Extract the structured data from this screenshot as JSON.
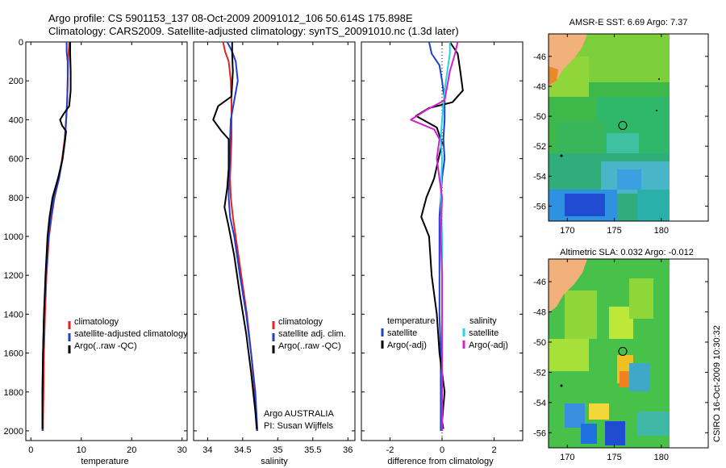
{
  "header": {
    "line1": "Argo profile: CS 5901153_137 08-Oct-2009 20091012_106 50.614S 175.898E",
    "line2": "Climatology: CARS2009. Satellite-adjusted climatology: synTS_20091010.nc (1.3d later)"
  },
  "credit": "CSIRO 16-Oct-2009 10:30:32",
  "chart_data": [
    {
      "type": "line",
      "xlabel": "temperature",
      "xlim": [
        -1,
        31
      ],
      "xticks": [
        0,
        10,
        20,
        30
      ],
      "ylim": [
        0,
        2050
      ],
      "yticks": [
        0,
        200,
        400,
        600,
        800,
        1000,
        1200,
        1400,
        1600,
        1800,
        2000
      ],
      "y_reversed": true,
      "legend": {
        "position": "lower-left",
        "entries": [
          {
            "label": "climatology",
            "color": "#e8211e"
          },
          {
            "label": "satellite-adjusted climatology",
            "color": "#1f3fcf"
          },
          {
            "label": "Argo(..raw -QC)",
            "color": "#000000"
          }
        ]
      },
      "series": [
        {
          "name": "climatology",
          "color": "#e8211e",
          "x": [
            7.6,
            7.5,
            7.4,
            7.3,
            7.2,
            7.0,
            6.7,
            6.2,
            5.6,
            4.7,
            4.1,
            3.6,
            3.1,
            2.8,
            2.6,
            2.5,
            2.4,
            2.4
          ],
          "y": [
            0,
            50,
            100,
            200,
            300,
            400,
            500,
            600,
            700,
            800,
            900,
            1000,
            1200,
            1400,
            1600,
            1800,
            1950,
            2000
          ]
        },
        {
          "name": "satellite-adjusted climatology",
          "color": "#1f3fcf",
          "x": [
            7.1,
            7.1,
            7.3,
            7.3,
            7.2,
            7.0,
            6.8,
            6.3,
            5.6,
            4.6,
            4.0,
            3.5,
            3.0,
            2.6,
            2.4,
            2.3,
            2.3,
            2.3
          ],
          "y": [
            0,
            50,
            100,
            200,
            300,
            400,
            500,
            600,
            700,
            800,
            900,
            1000,
            1200,
            1400,
            1600,
            1800,
            1950,
            2000
          ]
        },
        {
          "name": "Argo(..raw -QC)",
          "color": "#000000",
          "x": [
            7.8,
            7.8,
            7.9,
            7.9,
            7.6,
            6.5,
            5.8,
            6.2,
            7.0,
            6.3,
            5.4,
            4.3,
            3.7,
            3.3,
            2.9,
            2.6,
            2.4,
            2.3,
            2.3
          ],
          "y": [
            0,
            60,
            150,
            250,
            330,
            370,
            400,
            430,
            460,
            600,
            700,
            800,
            900,
            1000,
            1200,
            1400,
            1600,
            1800,
            1990
          ]
        }
      ]
    },
    {
      "type": "line",
      "xlabel": "salinity",
      "xlim": [
        33.8,
        36.1
      ],
      "xticks": [
        34,
        34.5,
        35,
        35.5,
        36
      ],
      "ylim": [
        0,
        2050
      ],
      "yticks": [
        0,
        200,
        400,
        600,
        800,
        1000,
        1200,
        1400,
        1600,
        1800,
        2000
      ],
      "y_reversed": true,
      "legend": {
        "position": "lower-right",
        "entries": [
          {
            "label": "climatology",
            "color": "#e8211e"
          },
          {
            "label": "satellite adj. clim.",
            "color": "#1f3fcf"
          },
          {
            "label": "Argo(..raw -QC)",
            "color": "#000000"
          }
        ]
      },
      "annotation": {
        "line1": "Argo AUSTRALIA",
        "line2": "PI: Susan Wijffels"
      },
      "series": [
        {
          "name": "climatology",
          "color": "#e8211e",
          "x": [
            34.22,
            34.25,
            34.3,
            34.33,
            34.34,
            34.34,
            34.34,
            34.33,
            34.32,
            34.33,
            34.36,
            34.4,
            34.48,
            34.56,
            34.62,
            34.67,
            34.7
          ],
          "y": [
            0,
            50,
            100,
            200,
            300,
            400,
            500,
            600,
            700,
            800,
            900,
            1000,
            1200,
            1400,
            1600,
            1800,
            2000
          ]
        },
        {
          "name": "satellite adj. clim.",
          "color": "#1f3fcf",
          "x": [
            34.28,
            34.35,
            34.4,
            34.43,
            34.38,
            34.33,
            34.32,
            34.32,
            34.3,
            34.3,
            34.32,
            34.38,
            34.46,
            34.55,
            34.62,
            34.68,
            34.71
          ],
          "y": [
            0,
            50,
            100,
            200,
            300,
            400,
            500,
            600,
            700,
            800,
            900,
            1000,
            1200,
            1400,
            1600,
            1800,
            2000
          ]
        },
        {
          "name": "Argo(..raw -QC)",
          "color": "#000000",
          "x": [
            34.35,
            34.35,
            34.36,
            34.34,
            34.15,
            34.08,
            34.2,
            34.3,
            34.3,
            34.28,
            34.24,
            34.3,
            34.38,
            34.46,
            34.55,
            34.62,
            34.68,
            34.7
          ],
          "y": [
            0,
            60,
            150,
            280,
            330,
            400,
            460,
            500,
            650,
            750,
            850,
            950,
            1100,
            1300,
            1500,
            1700,
            1900,
            1990
          ]
        }
      ]
    },
    {
      "type": "line",
      "xlabel": "difference from climatology",
      "xlim": [
        -3.1,
        3.1
      ],
      "xticks": [
        -2,
        0,
        2
      ],
      "ylim": [
        0,
        2050
      ],
      "yticks": [
        0,
        200,
        400,
        600,
        800,
        1000,
        1200,
        1400,
        1600,
        1800,
        2000
      ],
      "y_reversed": true,
      "legend": {
        "position": "lower",
        "groups": [
          {
            "heading": "temperature",
            "entries": [
              {
                "label": "satellite",
                "color": "#1f3fcf"
              },
              {
                "label": "Argo(-adj)",
                "color": "#000000"
              }
            ]
          },
          {
            "heading": "salinity",
            "entries": [
              {
                "label": "satellite",
                "color": "#22d4ea"
              },
              {
                "label": "Argo(-adj)",
                "color": "#d020d0"
              }
            ]
          }
        ]
      },
      "series": [
        {
          "name": "temperature satellite",
          "color": "#1f3fcf",
          "x": [
            -0.5,
            -0.4,
            -0.1,
            0.0,
            0.1,
            0.1,
            0.05,
            0.1,
            0.0,
            -0.05,
            -0.1,
            -0.1,
            -0.1,
            -0.1,
            -0.05,
            -0.05,
            -0.05
          ],
          "y": [
            0,
            60,
            120,
            200,
            300,
            400,
            500,
            600,
            700,
            800,
            900,
            1000,
            1200,
            1400,
            1600,
            1800,
            2000
          ]
        },
        {
          "name": "temperature Argo(-adj)",
          "color": "#000000",
          "x": [
            0.3,
            0.6,
            0.7,
            0.8,
            0.4,
            -0.5,
            -1.0,
            -0.2,
            0.0,
            -0.3,
            -0.6,
            -0.8,
            -0.5,
            -0.4,
            -0.2,
            -0.1,
            0.1,
            0.0,
            0.05
          ],
          "y": [
            0,
            60,
            150,
            250,
            310,
            340,
            380,
            440,
            520,
            700,
            800,
            900,
            1000,
            1200,
            1400,
            1600,
            1800,
            1950,
            1990
          ]
        },
        {
          "name": "salinity satellite",
          "color": "#22d4ea",
          "x": [
            0.3,
            0.3,
            0.2,
            0.1,
            0.0,
            -0.05,
            0.0,
            -0.05,
            0.0,
            0.0,
            0.0,
            0.0,
            0.0
          ],
          "y": [
            0,
            60,
            150,
            250,
            400,
            500,
            600,
            800,
            1000,
            1200,
            1400,
            1600,
            1800
          ]
        },
        {
          "name": "salinity Argo(-adj)",
          "color": "#d020d0",
          "x": [
            0.6,
            0.5,
            0.3,
            0.1,
            -0.6,
            -1.2,
            -0.3,
            -0.1,
            -0.2,
            0.0,
            -0.05,
            0.0,
            0.0,
            0.0,
            0.0,
            0.0,
            0.0
          ],
          "y": [
            0,
            60,
            150,
            300,
            350,
            400,
            450,
            500,
            600,
            800,
            1000,
            1200,
            1400,
            1600,
            1800,
            1950,
            2000
          ]
        }
      ]
    }
  ],
  "maps": [
    {
      "title": "AMSR-E SST: 6.69 Argo: 7.37",
      "xlim": [
        168,
        185
      ],
      "ylim": [
        -57,
        -44.5
      ],
      "xticks": [
        170,
        175,
        180
      ],
      "yticks": [
        -46,
        -48,
        -50,
        -52,
        -54,
        -56
      ],
      "data_lon_range": [
        168,
        180
      ],
      "float_position": {
        "lon": 175.898,
        "lat": -50.614
      }
    },
    {
      "title": "Altimetric SLA: 0.032 Argo: -0.012",
      "xlim": [
        168,
        185
      ],
      "ylim": [
        -57,
        -44.5
      ],
      "xticks": [
        170,
        175,
        180
      ],
      "yticks": [
        -46,
        -48,
        -50,
        -52,
        -54,
        -56
      ],
      "data_lon_range": [
        168,
        180
      ],
      "float_position": {
        "lon": 175.898,
        "lat": -50.614
      }
    }
  ]
}
